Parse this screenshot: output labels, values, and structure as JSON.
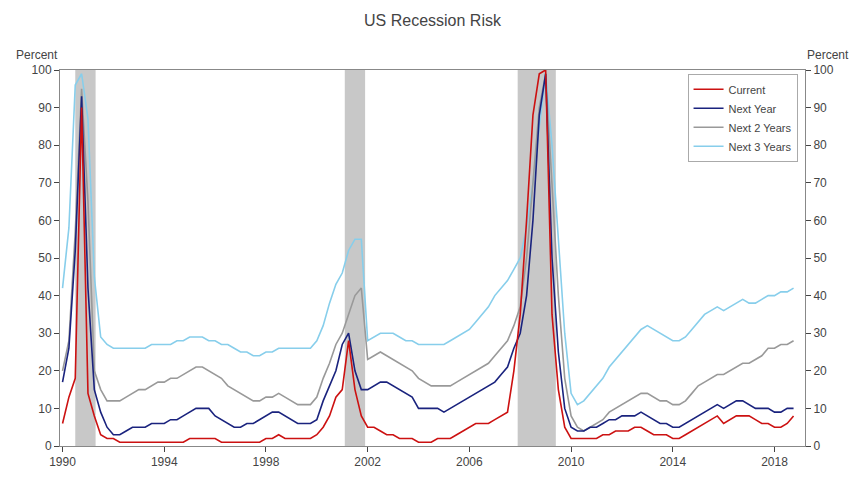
{
  "chart_data": {
    "type": "line",
    "title": "US Recession Risk",
    "ylabel": "Percent",
    "y2label": "Percent",
    "x": [
      1990.0,
      1990.25,
      1990.5,
      1990.75,
      1991.0,
      1991.25,
      1991.5,
      1991.75,
      1992.0,
      1992.25,
      1992.5,
      1992.75,
      1993.0,
      1993.25,
      1993.5,
      1993.75,
      1994.0,
      1994.25,
      1994.5,
      1994.75,
      1995.0,
      1995.25,
      1995.5,
      1995.75,
      1996.0,
      1996.25,
      1996.5,
      1996.75,
      1997.0,
      1997.25,
      1997.5,
      1997.75,
      1998.0,
      1998.25,
      1998.5,
      1998.75,
      1999.0,
      1999.25,
      1999.5,
      1999.75,
      2000.0,
      2000.25,
      2000.5,
      2000.75,
      2001.0,
      2001.25,
      2001.5,
      2001.75,
      2002.0,
      2002.25,
      2002.5,
      2002.75,
      2003.0,
      2003.25,
      2003.5,
      2003.75,
      2004.0,
      2004.25,
      2004.5,
      2004.75,
      2005.0,
      2005.25,
      2005.5,
      2005.75,
      2006.0,
      2006.25,
      2006.5,
      2006.75,
      2007.0,
      2007.25,
      2007.5,
      2007.75,
      2008.0,
      2008.25,
      2008.5,
      2008.75,
      2009.0,
      2009.25,
      2009.5,
      2009.75,
      2010.0,
      2010.25,
      2010.5,
      2010.75,
      2011.0,
      2011.25,
      2011.5,
      2011.75,
      2012.0,
      2012.25,
      2012.5,
      2012.75,
      2013.0,
      2013.25,
      2013.5,
      2013.75,
      2014.0,
      2014.25,
      2014.5,
      2014.75,
      2015.0,
      2015.25,
      2015.5,
      2015.75,
      2016.0,
      2016.25,
      2016.5,
      2016.75,
      2017.0,
      2017.25,
      2017.5,
      2017.75,
      2018.0,
      2018.25,
      2018.5,
      2018.75
    ],
    "series": [
      {
        "name": "Current",
        "color": "#cc1111",
        "values": [
          6,
          13,
          18,
          90,
          14,
          8,
          3,
          2,
          2,
          1,
          1,
          1,
          1,
          1,
          1,
          1,
          1,
          1,
          1,
          1,
          2,
          2,
          2,
          2,
          2,
          1,
          1,
          1,
          1,
          1,
          1,
          1,
          2,
          2,
          3,
          2,
          2,
          2,
          2,
          2,
          3,
          5,
          8,
          13,
          15,
          28,
          15,
          8,
          5,
          5,
          4,
          3,
          3,
          2,
          2,
          2,
          1,
          1,
          1,
          2,
          2,
          2,
          3,
          4,
          5,
          6,
          6,
          6,
          7,
          8,
          9,
          20,
          35,
          60,
          88,
          99,
          100,
          35,
          15,
          5,
          2,
          2,
          2,
          2,
          2,
          3,
          3,
          4,
          4,
          4,
          5,
          5,
          4,
          3,
          3,
          3,
          2,
          2,
          3,
          4,
          5,
          6,
          7,
          8,
          6,
          7,
          8,
          8,
          8,
          7,
          6,
          6,
          5,
          5,
          6,
          8
        ]
      },
      {
        "name": "Next Year",
        "color": "#1a237e",
        "values": [
          17,
          26,
          52,
          93,
          42,
          15,
          9,
          5,
          3,
          3,
          4,
          5,
          5,
          5,
          6,
          6,
          6,
          7,
          7,
          8,
          9,
          10,
          10,
          10,
          8,
          7,
          6,
          5,
          5,
          6,
          6,
          7,
          8,
          9,
          9,
          8,
          7,
          6,
          6,
          6,
          7,
          12,
          16,
          20,
          27,
          30,
          20,
          15,
          15,
          16,
          17,
          17,
          16,
          15,
          14,
          13,
          10,
          10,
          10,
          10,
          9,
          10,
          11,
          12,
          13,
          14,
          15,
          16,
          17,
          19,
          21,
          26,
          30,
          40,
          60,
          88,
          99,
          50,
          25,
          10,
          5,
          4,
          4,
          5,
          5,
          6,
          7,
          7,
          8,
          8,
          8,
          9,
          8,
          7,
          6,
          6,
          5,
          5,
          6,
          7,
          8,
          9,
          10,
          11,
          10,
          11,
          12,
          12,
          11,
          10,
          10,
          10,
          9,
          9,
          10,
          10
        ]
      },
      {
        "name": "Next 2 Years",
        "color": "#999999",
        "values": [
          20,
          28,
          57,
          95,
          65,
          20,
          15,
          12,
          12,
          12,
          13,
          14,
          15,
          15,
          16,
          17,
          17,
          18,
          18,
          19,
          20,
          21,
          21,
          20,
          19,
          18,
          16,
          15,
          14,
          13,
          12,
          12,
          13,
          13,
          14,
          13,
          12,
          11,
          11,
          11,
          13,
          18,
          22,
          27,
          30,
          35,
          40,
          42,
          23,
          24,
          25,
          24,
          23,
          22,
          21,
          20,
          18,
          17,
          16,
          16,
          16,
          16,
          17,
          18,
          19,
          20,
          21,
          22,
          24,
          26,
          28,
          32,
          37,
          50,
          70,
          90,
          99,
          70,
          40,
          18,
          8,
          5,
          4,
          5,
          6,
          7,
          9,
          10,
          11,
          12,
          13,
          14,
          14,
          13,
          12,
          12,
          11,
          11,
          12,
          14,
          16,
          17,
          18,
          19,
          19,
          20,
          21,
          22,
          22,
          23,
          24,
          26,
          26,
          27,
          27,
          28
        ]
      },
      {
        "name": "Next 3 Years",
        "color": "#87ceeb",
        "values": [
          42,
          58,
          96,
          99,
          87,
          45,
          29,
          27,
          26,
          26,
          26,
          26,
          26,
          26,
          27,
          27,
          27,
          27,
          28,
          28,
          29,
          29,
          29,
          28,
          28,
          27,
          27,
          26,
          25,
          25,
          24,
          24,
          25,
          25,
          26,
          26,
          26,
          26,
          26,
          26,
          28,
          32,
          38,
          43,
          46,
          52,
          55,
          55,
          28,
          29,
          30,
          30,
          30,
          29,
          28,
          28,
          27,
          27,
          27,
          27,
          27,
          28,
          29,
          30,
          31,
          33,
          35,
          37,
          40,
          42,
          44,
          47,
          50,
          58,
          70,
          85,
          99,
          80,
          55,
          30,
          14,
          11,
          12,
          14,
          16,
          18,
          21,
          23,
          25,
          27,
          29,
          31,
          32,
          31,
          30,
          29,
          28,
          28,
          29,
          31,
          33,
          35,
          36,
          37,
          36,
          37,
          38,
          39,
          38,
          38,
          39,
          40,
          40,
          41,
          41,
          42
        ]
      }
    ],
    "recession_shading": [
      [
        1990.5,
        1991.3
      ],
      [
        2001.1,
        2001.9
      ],
      [
        2007.9,
        2009.4
      ]
    ],
    "shading_color": "#c8c8c8",
    "xlim": [
      1989.9,
      2019.2
    ],
    "xticks": [
      1990,
      1994,
      1998,
      2002,
      2006,
      2010,
      2014,
      2018
    ],
    "ylim": [
      0,
      100
    ],
    "yticks": [
      0,
      10,
      20,
      30,
      40,
      50,
      60,
      70,
      80,
      90,
      100
    ],
    "y2lim": [
      0,
      100
    ],
    "y2ticks": [
      0,
      10,
      20,
      30,
      40,
      50,
      60,
      70,
      80,
      90,
      100
    ],
    "grid": false,
    "legend": "upper right"
  }
}
